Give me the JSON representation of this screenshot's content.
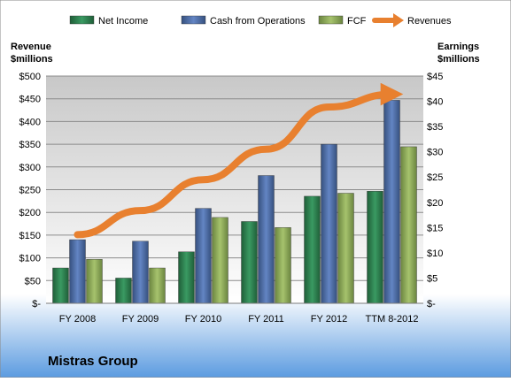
{
  "chart_data": {
    "type": "bar",
    "title": "Mistras Group",
    "y_left_label": [
      "Revenue",
      "$millions"
    ],
    "y_right_label": [
      "Earnings",
      "$millions"
    ],
    "categories": [
      "FY 2008",
      "FY 2009",
      "FY 2010",
      "FY 2011",
      "FY 2012",
      "TTM 8-2012"
    ],
    "left_ticks": [
      "$-",
      "$50",
      "$100",
      "$150",
      "$200",
      "$250",
      "$300",
      "$350",
      "$400",
      "$450",
      "$500"
    ],
    "right_ticks": [
      "$-",
      "$5",
      "$10",
      "$15",
      "$20",
      "$25",
      "$30",
      "$35",
      "$40",
      "$45"
    ],
    "ylim_left": [
      0,
      500
    ],
    "ylim_right": [
      0,
      45
    ],
    "grid": true,
    "legend_position": "top",
    "series": [
      {
        "name": "Net Income",
        "type": "bar",
        "axis": "right",
        "color": "#2f7d4f",
        "values": [
          7,
          5,
          10.2,
          16.2,
          21.2,
          22.2
        ]
      },
      {
        "name": "Cash from Operations",
        "type": "bar",
        "axis": "right",
        "color": "#4f6fa8",
        "values": [
          12.6,
          12.3,
          18.8,
          25.3,
          31.5,
          40.2
        ]
      },
      {
        "name": "FCF",
        "type": "bar",
        "axis": "right",
        "color": "#8fac5a",
        "values": [
          8.7,
          7,
          17,
          15,
          21.8,
          31
        ]
      },
      {
        "name": "Revenues",
        "type": "line",
        "axis": "left",
        "color": "#e8802f",
        "values": [
          151,
          204,
          272,
          339,
          432,
          460
        ]
      }
    ]
  }
}
